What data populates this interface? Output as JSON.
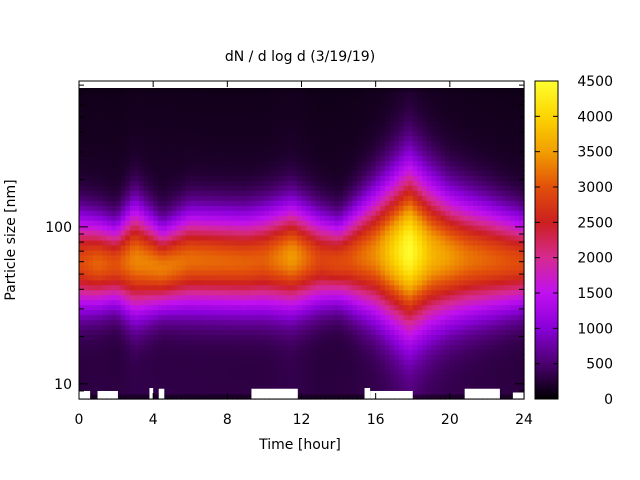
{
  "chart_data": {
    "type": "heatmap",
    "title": "dN / d log d (3/19/19)",
    "xlabel": "Time [hour]",
    "ylabel": "Particle size [nm]",
    "x_ticks": [
      0,
      4,
      8,
      12,
      16,
      20,
      24
    ],
    "y_ticks": [
      {
        "value": 10,
        "label": "10"
      },
      {
        "value": 100,
        "label": "100"
      }
    ],
    "xlim": [
      0,
      24
    ],
    "ylim": [
      8,
      850
    ],
    "y_scale": "log",
    "colorbar": {
      "range": [
        0,
        4500
      ],
      "ticks": [
        0,
        500,
        1000,
        1500,
        2000,
        2500,
        3000,
        3500,
        4000,
        4500
      ],
      "palette": [
        "#000000",
        "#4a006e",
        "#8a00d8",
        "#c010f0",
        "#d62a90",
        "#cc1f1f",
        "#e2500a",
        "#f29e00",
        "#fcd500",
        "#ffff30"
      ]
    },
    "mode_diameter_nm": [
      {
        "hour": 0,
        "d": 60
      },
      {
        "hour": 2,
        "d": 58
      },
      {
        "hour": 3,
        "d": 62
      },
      {
        "hour": 4.5,
        "d": 55
      },
      {
        "hour": 6,
        "d": 62
      },
      {
        "hour": 9,
        "d": 60
      },
      {
        "hour": 11.5,
        "d": 65
      },
      {
        "hour": 14,
        "d": 60
      },
      {
        "hour": 16,
        "d": 68
      },
      {
        "hour": 17.8,
        "d": 72
      },
      {
        "hour": 20,
        "d": 65
      },
      {
        "hour": 24,
        "d": 60
      }
    ],
    "peak_concentration": [
      {
        "hour": 0,
        "value": 2700
      },
      {
        "hour": 1,
        "value": 2900
      },
      {
        "hour": 2,
        "value": 2750
      },
      {
        "hour": 3,
        "value": 3100
      },
      {
        "hour": 4.5,
        "value": 3050
      },
      {
        "hour": 6,
        "value": 2950
      },
      {
        "hour": 8,
        "value": 2900
      },
      {
        "hour": 10,
        "value": 2850
      },
      {
        "hour": 11.5,
        "value": 3250
      },
      {
        "hour": 13,
        "value": 2650
      },
      {
        "hour": 14.5,
        "value": 2750
      },
      {
        "hour": 16,
        "value": 3150
      },
      {
        "hour": 17.8,
        "value": 4200
      },
      {
        "hour": 19,
        "value": 3450
      },
      {
        "hour": 21,
        "value": 3000
      },
      {
        "hour": 23,
        "value": 2800
      },
      {
        "hour": 24,
        "value": 2700
      }
    ],
    "band_log_width": [
      {
        "hour": 0,
        "w": 0.2
      },
      {
        "hour": 2,
        "w": 0.17
      },
      {
        "hour": 3,
        "w": 0.23
      },
      {
        "hour": 4.5,
        "w": 0.17
      },
      {
        "hour": 6,
        "w": 0.2
      },
      {
        "hour": 9,
        "w": 0.2
      },
      {
        "hour": 11.5,
        "w": 0.22
      },
      {
        "hour": 14,
        "w": 0.17
      },
      {
        "hour": 16,
        "w": 0.26
      },
      {
        "hour": 17.8,
        "w": 0.34
      },
      {
        "hour": 20,
        "w": 0.26
      },
      {
        "hour": 24,
        "w": 0.19
      }
    ]
  }
}
